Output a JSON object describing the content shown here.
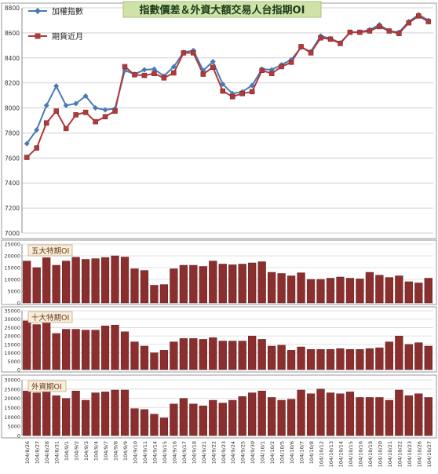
{
  "chart_data": [
    {
      "type": "line",
      "title": "指數價差＆外資大額交易人台指期OI",
      "categories": [
        "104/8/26",
        "104/8/27",
        "104/8/28",
        "104/8/31",
        "104/9/1",
        "104/9/2",
        "104/9/3",
        "104/9/4",
        "104/9/7",
        "104/9/8",
        "104/9/9",
        "104/9/10",
        "104/9/11",
        "104/9/14",
        "104/9/15",
        "104/9/16",
        "104/9/17",
        "104/9/18",
        "104/9/21",
        "104/9/22",
        "104/9/23",
        "104/9/24",
        "104/9/25",
        "104/9/30",
        "104/10/1",
        "104/10/2",
        "104/10/5",
        "104/10/6",
        "104/10/7",
        "104/10/8",
        "104/10/12",
        "104/10/13",
        "104/10/14",
        "104/10/15",
        "104/10/16",
        "104/10/19",
        "104/10/20",
        "104/10/21",
        "104/10/22",
        "104/10/23",
        "104/10/26",
        "104/10/27"
      ],
      "series": [
        {
          "name": "加權指數",
          "color": "#4a7ab5",
          "marker": "diamond",
          "values": [
            7715,
            7825,
            8020,
            8175,
            8020,
            8035,
            8095,
            8000,
            7985,
            7995,
            8300,
            8270,
            8305,
            8310,
            8255,
            8330,
            8445,
            8460,
            8300,
            8370,
            8190,
            8115,
            8130,
            8180,
            8310,
            8305,
            8345,
            8385,
            8485,
            8450,
            8575,
            8555,
            8520,
            8605,
            8605,
            8625,
            8665,
            8615,
            8605,
            8690,
            8745,
            8700
          ]
        },
        {
          "name": "期貨近月",
          "color": "#b03a3a",
          "marker": "square",
          "values": [
            7605,
            7680,
            7880,
            7975,
            7835,
            7945,
            7965,
            7890,
            7930,
            7975,
            8330,
            8265,
            8260,
            8275,
            8240,
            8280,
            8440,
            8440,
            8270,
            8325,
            8135,
            8090,
            8115,
            8130,
            8300,
            8275,
            8330,
            8365,
            8490,
            8440,
            8560,
            8550,
            8515,
            8605,
            8605,
            8615,
            8650,
            8615,
            8595,
            8680,
            8735,
            8690
          ]
        }
      ],
      "ylim": [
        7000,
        8800
      ],
      "yticks": [
        "7000",
        "7200",
        "7400",
        "7600",
        "7800",
        "8000",
        "8200",
        "8400",
        "8600",
        "8800"
      ],
      "grid": true,
      "legend_position": "top-left"
    },
    {
      "type": "bar",
      "title": "五大特期OI",
      "color": "#8b2e2e",
      "values": [
        17800,
        15000,
        19200,
        16000,
        17800,
        19400,
        18500,
        18800,
        19300,
        20000,
        19500,
        14500,
        13800,
        7500,
        7800,
        14500,
        16000,
        16000,
        15500,
        17800,
        16500,
        16200,
        16500,
        17000,
        17500,
        13000,
        12500,
        11500,
        12800,
        10000,
        10000,
        10500,
        11000,
        10500,
        10200,
        13000,
        11800,
        10800,
        11500,
        9000,
        8500,
        10500
      ],
      "ylim": [
        0,
        25000
      ],
      "yticks": [
        "0",
        "5000",
        "10000",
        "15000",
        "20000",
        "25000"
      ],
      "grid": true
    },
    {
      "type": "bar",
      "title": "十大特期OI",
      "color": "#8b2e2e",
      "values": [
        29000,
        26800,
        30000,
        21500,
        24000,
        24000,
        23500,
        23500,
        26000,
        26500,
        22500,
        16500,
        14000,
        10000,
        11500,
        16500,
        18500,
        18500,
        18000,
        19000,
        17000,
        17000,
        17000,
        20000,
        18000,
        14000,
        14500,
        11500,
        13500,
        12000,
        12000,
        12000,
        12500,
        12000,
        12000,
        12500,
        13000,
        16500,
        20000,
        15000,
        16000,
        14000
      ],
      "ylim": [
        0,
        35000
      ],
      "yticks": [
        "0",
        "5000",
        "10000",
        "15000",
        "20000",
        "25000",
        "30000",
        "35000"
      ],
      "grid": true
    },
    {
      "type": "bar",
      "title": "外資期OI",
      "color": "#8b2e2e",
      "values": [
        24000,
        23000,
        25500,
        21500,
        20000,
        24000,
        19000,
        23000,
        23500,
        24500,
        24500,
        14500,
        14000,
        11500,
        9500,
        17000,
        20000,
        17000,
        16000,
        19000,
        17500,
        19000,
        21000,
        23000,
        24000,
        20500,
        19000,
        19500,
        24500,
        22500,
        25000,
        23000,
        22500,
        23500,
        20500,
        20500,
        20500,
        19000,
        24500,
        21500,
        22500,
        20500
      ],
      "ylim": [
        0,
        30000
      ],
      "yticks": [
        "0",
        "5000",
        "10000",
        "15000",
        "20000",
        "25000",
        "30000"
      ],
      "grid": true
    }
  ]
}
